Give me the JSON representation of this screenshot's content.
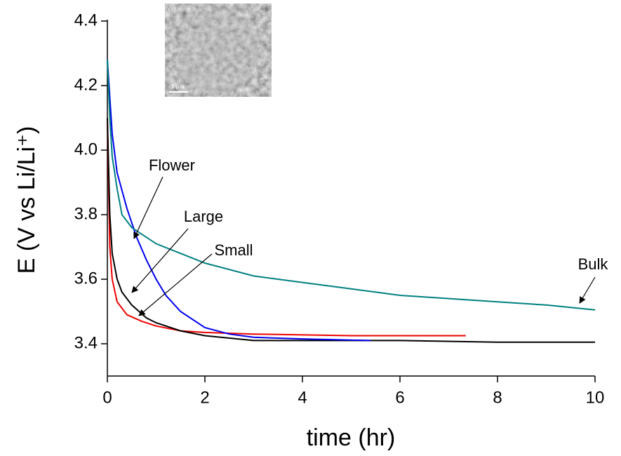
{
  "chart_data": {
    "type": "line",
    "x_label": "time (hr)",
    "y_label": "E (V vs Li/Li⁺)",
    "xlim": [
      0,
      10
    ],
    "ylim": [
      3.3,
      4.4
    ],
    "xticks": [
      0,
      2,
      4,
      6,
      8,
      10
    ],
    "yticks": [
      {
        "value": 3.4,
        "label": "3.4"
      },
      {
        "value": 3.6,
        "label": "3.6"
      },
      {
        "value": 3.8,
        "label": "3.8"
      },
      {
        "value": 4.0,
        "label": "4.0"
      },
      {
        "value": 4.2,
        "label": "4.2"
      },
      {
        "value": 4.4,
        "label": "4.4"
      }
    ],
    "inset": {
      "label": "(b)",
      "scale": "1 μm"
    },
    "series": [
      {
        "name": "Bulk",
        "color": "#008080",
        "x": [
          0,
          0.05,
          0.1,
          0.2,
          0.3,
          0.5,
          1,
          1.5,
          2,
          3,
          4,
          5,
          6,
          7,
          8,
          9,
          10
        ],
        "values": [
          4.28,
          4.1,
          3.98,
          3.88,
          3.8,
          3.76,
          3.71,
          3.68,
          3.65,
          3.61,
          3.59,
          3.57,
          3.55,
          3.54,
          3.53,
          3.52,
          3.505
        ]
      },
      {
        "name": "Flower",
        "color": "#0000ee",
        "x": [
          0,
          0.1,
          0.2,
          0.4,
          0.6,
          0.8,
          1,
          1.2,
          1.5,
          2,
          2.5,
          3,
          4,
          5.4
        ],
        "values": [
          4.28,
          4.05,
          3.93,
          3.82,
          3.73,
          3.66,
          3.6,
          3.55,
          3.5,
          3.45,
          3.43,
          3.42,
          3.415,
          3.41
        ]
      },
      {
        "name": "Large",
        "color": "#000000",
        "x": [
          0,
          0.05,
          0.1,
          0.2,
          0.3,
          0.5,
          0.8,
          1,
          1.5,
          2,
          3,
          4,
          6,
          8,
          10
        ],
        "values": [
          4.1,
          3.8,
          3.68,
          3.6,
          3.56,
          3.52,
          3.48,
          3.465,
          3.44,
          3.425,
          3.41,
          3.41,
          3.41,
          3.405,
          3.405
        ]
      },
      {
        "name": "Small",
        "color": "#ee0000",
        "x": [
          0,
          0.05,
          0.1,
          0.2,
          0.4,
          0.7,
          1,
          1.5,
          2,
          3,
          5,
          7.35
        ],
        "values": [
          4.1,
          3.7,
          3.6,
          3.53,
          3.49,
          3.47,
          3.455,
          3.44,
          3.435,
          3.43,
          3.425,
          3.425
        ]
      }
    ]
  }
}
